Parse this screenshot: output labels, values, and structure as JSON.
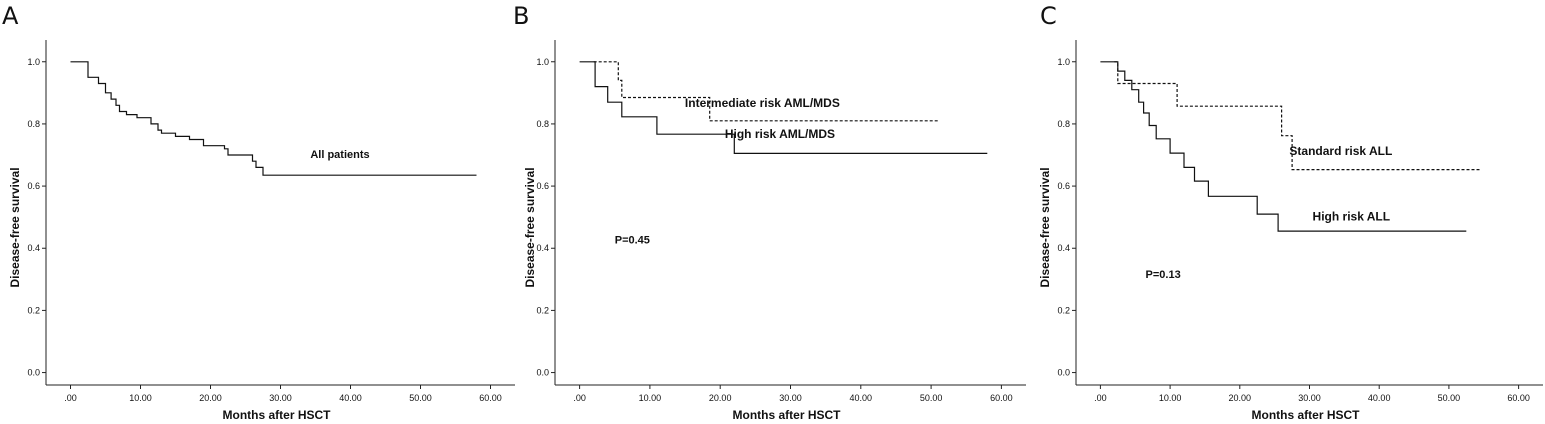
{
  "chart_data": [
    {
      "type": "line",
      "panel_label": "A",
      "xlabel": "Months after HSCT",
      "ylabel": "Disease-free survival",
      "xlim": [
        -3.5,
        63.5
      ],
      "ylim": [
        -0.04,
        1.07
      ],
      "x_ticks": [
        0,
        10,
        20,
        30,
        40,
        50,
        60
      ],
      "x_tick_labels": [
        ".00",
        "10.00",
        "20.00",
        "30.00",
        "40.00",
        "50.00",
        "60.00"
      ],
      "y_ticks": [
        0,
        0.2,
        0.4,
        0.6,
        0.8,
        1.0
      ],
      "y_tick_labels": [
        "0.0",
        "0.2",
        "0.4",
        "0.6",
        "0.8",
        "1.0"
      ],
      "series": [
        {
          "name": "All patients",
          "style": "solid",
          "points": [
            [
              0,
              1.0
            ],
            [
              2.5,
              1.0
            ],
            [
              2.5,
              0.95
            ],
            [
              4,
              0.95
            ],
            [
              4,
              0.93
            ],
            [
              5,
              0.93
            ],
            [
              5,
              0.9
            ],
            [
              5.8,
              0.9
            ],
            [
              5.8,
              0.88
            ],
            [
              6.5,
              0.88
            ],
            [
              6.5,
              0.86
            ],
            [
              7,
              0.86
            ],
            [
              7,
              0.84
            ],
            [
              8,
              0.84
            ],
            [
              8,
              0.83
            ],
            [
              9.5,
              0.83
            ],
            [
              9.5,
              0.82
            ],
            [
              11.5,
              0.82
            ],
            [
              11.5,
              0.8
            ],
            [
              12.5,
              0.8
            ],
            [
              12.5,
              0.78
            ],
            [
              13,
              0.78
            ],
            [
              13,
              0.77
            ],
            [
              15,
              0.77
            ],
            [
              15,
              0.76
            ],
            [
              17,
              0.76
            ],
            [
              17,
              0.75
            ],
            [
              19,
              0.75
            ],
            [
              19,
              0.73
            ],
            [
              22,
              0.73
            ],
            [
              22,
              0.72
            ],
            [
              22.5,
              0.72
            ],
            [
              22.5,
              0.7
            ],
            [
              26,
              0.7
            ],
            [
              26,
              0.68
            ],
            [
              26.5,
              0.68
            ],
            [
              26.5,
              0.66
            ],
            [
              27.5,
              0.66
            ],
            [
              27.5,
              0.635
            ],
            [
              58,
              0.635
            ]
          ]
        }
      ],
      "annotations": [
        {
          "text": "All patients",
          "x": 38.5,
          "y": 0.69,
          "size": 11
        }
      ]
    },
    {
      "type": "line",
      "panel_label": "B",
      "xlabel": "Months after HSCT",
      "ylabel": "Disease-free survival",
      "xlim": [
        -3.5,
        63.5
      ],
      "ylim": [
        -0.04,
        1.07
      ],
      "x_ticks": [
        0,
        10,
        20,
        30,
        40,
        50,
        60
      ],
      "x_tick_labels": [
        ".00",
        "10.00",
        "20.00",
        "30.00",
        "40.00",
        "50.00",
        "60.00"
      ],
      "y_ticks": [
        0,
        0.2,
        0.4,
        0.6,
        0.8,
        1.0
      ],
      "y_tick_labels": [
        "0.0",
        "0.2",
        "0.4",
        "0.6",
        "0.8",
        "1.0"
      ],
      "series": [
        {
          "name": "Intermediate risk AML/MDS",
          "style": "dashed",
          "points": [
            [
              2,
              1.0
            ],
            [
              5.5,
              1.0
            ],
            [
              5.5,
              0.94
            ],
            [
              6,
              0.94
            ],
            [
              6,
              0.885
            ],
            [
              18.5,
              0.885
            ],
            [
              18.5,
              0.81
            ],
            [
              51,
              0.81
            ]
          ]
        },
        {
          "name": "High risk AML/MDS",
          "style": "solid",
          "points": [
            [
              0,
              1.0
            ],
            [
              2.2,
              1.0
            ],
            [
              2.2,
              0.92
            ],
            [
              4,
              0.92
            ],
            [
              4,
              0.87
            ],
            [
              6,
              0.87
            ],
            [
              6,
              0.823
            ],
            [
              11,
              0.823
            ],
            [
              11,
              0.767
            ],
            [
              22,
              0.767
            ],
            [
              22,
              0.705
            ],
            [
              58,
              0.705
            ]
          ]
        }
      ],
      "annotations": [
        {
          "text": "Intermediate risk AML/MDS",
          "x": 26,
          "y": 0.855,
          "size": 12
        },
        {
          "text": "High risk AML/MDS",
          "x": 28.5,
          "y": 0.755,
          "size": 12
        },
        {
          "text": "P=0.45",
          "x": 7.5,
          "y": 0.415,
          "size": 11
        }
      ]
    },
    {
      "type": "line",
      "panel_label": "C",
      "xlabel": "Months after HSCT",
      "ylabel": "Disease-free survival",
      "xlim": [
        -3.5,
        63.5
      ],
      "ylim": [
        -0.04,
        1.07
      ],
      "x_ticks": [
        0,
        10,
        20,
        30,
        40,
        50,
        60
      ],
      "x_tick_labels": [
        ".00",
        "10.00",
        "20.00",
        "30.00",
        "40.00",
        "50.00",
        "60.00"
      ],
      "y_ticks": [
        0,
        0.2,
        0.4,
        0.6,
        0.8,
        1.0
      ],
      "y_tick_labels": [
        "0.0",
        "0.2",
        "0.4",
        "0.6",
        "0.8",
        "1.0"
      ],
      "series": [
        {
          "name": "Standard risk ALL",
          "style": "dashed",
          "points": [
            [
              2,
              1.0
            ],
            [
              2.5,
              1.0
            ],
            [
              2.5,
              0.93
            ],
            [
              11,
              0.93
            ],
            [
              11,
              0.857
            ],
            [
              26,
              0.857
            ],
            [
              26,
              0.762
            ],
            [
              27.5,
              0.762
            ],
            [
              27.5,
              0.653
            ],
            [
              54.5,
              0.653
            ]
          ]
        },
        {
          "name": "High risk ALL",
          "style": "solid",
          "points": [
            [
              0,
              1.0
            ],
            [
              2.5,
              1.0
            ],
            [
              2.5,
              0.97
            ],
            [
              3.5,
              0.97
            ],
            [
              3.5,
              0.94
            ],
            [
              4.5,
              0.94
            ],
            [
              4.5,
              0.91
            ],
            [
              5.5,
              0.91
            ],
            [
              5.5,
              0.87
            ],
            [
              6.2,
              0.87
            ],
            [
              6.2,
              0.835
            ],
            [
              7,
              0.835
            ],
            [
              7,
              0.795
            ],
            [
              8,
              0.795
            ],
            [
              8,
              0.752
            ],
            [
              10,
              0.752
            ],
            [
              10,
              0.706
            ],
            [
              12,
              0.706
            ],
            [
              12,
              0.66
            ],
            [
              13.5,
              0.66
            ],
            [
              13.5,
              0.616
            ],
            [
              15.5,
              0.616
            ],
            [
              15.5,
              0.567
            ],
            [
              22.5,
              0.567
            ],
            [
              22.5,
              0.51
            ],
            [
              25.5,
              0.51
            ],
            [
              25.5,
              0.455
            ],
            [
              52.5,
              0.455
            ]
          ]
        }
      ],
      "annotations": [
        {
          "text": "Standard risk ALL",
          "x": 34.5,
          "y": 0.7,
          "size": 12
        },
        {
          "text": "High risk ALL",
          "x": 36,
          "y": 0.49,
          "size": 12
        },
        {
          "text": "P=0.13",
          "x": 9,
          "y": 0.305,
          "size": 11
        }
      ]
    }
  ]
}
